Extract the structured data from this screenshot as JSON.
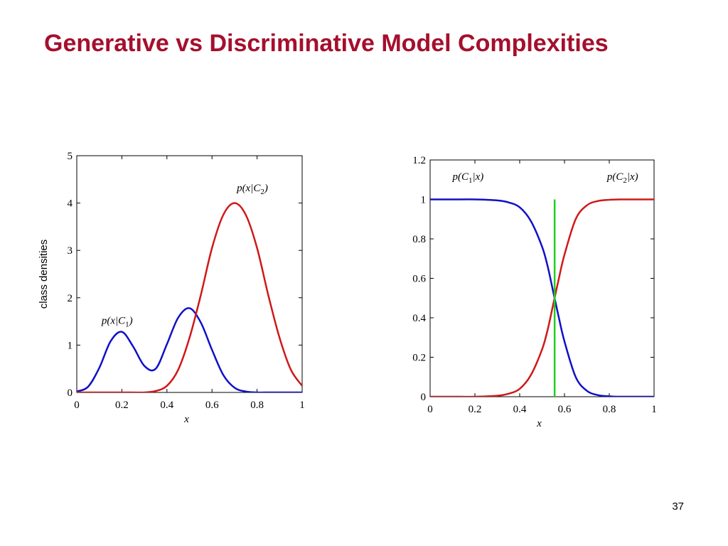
{
  "slide": {
    "title": "Generative vs Discriminative Model Complexities",
    "page_number": "37"
  },
  "chart_data": [
    {
      "type": "line",
      "xlabel": "x",
      "ylabel": "class densities",
      "xlim": [
        0,
        1
      ],
      "ylim": [
        0,
        5
      ],
      "xticks": [
        "0",
        "0.2",
        "0.4",
        "0.6",
        "0.8",
        "1"
      ],
      "yticks": [
        "0",
        "1",
        "2",
        "3",
        "4",
        "5"
      ],
      "grid": false,
      "x": [
        0,
        0.05,
        0.1,
        0.15,
        0.2,
        0.25,
        0.3,
        0.35,
        0.4,
        0.45,
        0.5,
        0.55,
        0.6,
        0.65,
        0.7,
        0.75,
        0.8,
        0.85,
        0.9,
        0.95,
        1
      ],
      "series": [
        {
          "name": "p(x|C1)",
          "color": "#1010c8",
          "values": [
            0.02,
            0.12,
            0.52,
            1.08,
            1.28,
            0.97,
            0.56,
            0.5,
            1.02,
            1.58,
            1.78,
            1.48,
            0.9,
            0.37,
            0.1,
            0.02,
            0.0,
            0.0,
            0.0,
            0.0,
            0.0
          ]
        },
        {
          "name": "p(x|C2)",
          "color": "#d01818",
          "values": [
            0.0,
            0.0,
            0.0,
            0.0,
            0.0,
            0.0,
            0.0,
            0.03,
            0.14,
            0.48,
            1.15,
            2.05,
            3.05,
            3.75,
            4.0,
            3.75,
            3.05,
            2.05,
            1.15,
            0.48,
            0.14
          ]
        }
      ],
      "annotations": [
        {
          "text": "p(x|C1)",
          "x": 0.11,
          "y": 1.45
        },
        {
          "text": "p(x|C2)",
          "x": 0.71,
          "y": 4.25
        }
      ]
    },
    {
      "type": "line",
      "xlabel": "x",
      "ylabel": "",
      "xlim": [
        0,
        1
      ],
      "ylim": [
        0,
        1.2
      ],
      "xticks": [
        "0",
        "0.2",
        "0.4",
        "0.6",
        "0.8",
        "1"
      ],
      "yticks": [
        "0",
        "0.2",
        "0.4",
        "0.6",
        "0.8",
        "1",
        "1.2"
      ],
      "grid": false,
      "x": [
        0,
        0.1,
        0.2,
        0.3,
        0.35,
        0.4,
        0.45,
        0.5,
        0.525,
        0.55,
        0.575,
        0.6,
        0.65,
        0.7,
        0.75,
        0.8,
        0.85,
        0.9,
        1
      ],
      "series": [
        {
          "name": "p(C1|x)",
          "color": "#1010c8",
          "values": [
            1.0,
            1.0,
            1.0,
            0.995,
            0.985,
            0.96,
            0.89,
            0.76,
            0.66,
            0.53,
            0.4,
            0.28,
            0.1,
            0.03,
            0.008,
            0.002,
            0.0,
            0.0,
            0.0
          ]
        },
        {
          "name": "p(C2|x)",
          "color": "#d01818",
          "values": [
            0.0,
            0.0,
            0.0,
            0.005,
            0.015,
            0.04,
            0.11,
            0.24,
            0.34,
            0.47,
            0.6,
            0.72,
            0.9,
            0.97,
            0.992,
            0.998,
            1.0,
            1.0,
            1.0
          ]
        }
      ],
      "vertical_line": {
        "x": 0.556,
        "y": [
          0,
          1.0
        ],
        "color": "#20d020"
      },
      "annotations": [
        {
          "text": "p(C1|x)",
          "x": 0.1,
          "y": 1.1
        },
        {
          "text": "p(C2|x)",
          "x": 0.79,
          "y": 1.1
        }
      ]
    }
  ]
}
